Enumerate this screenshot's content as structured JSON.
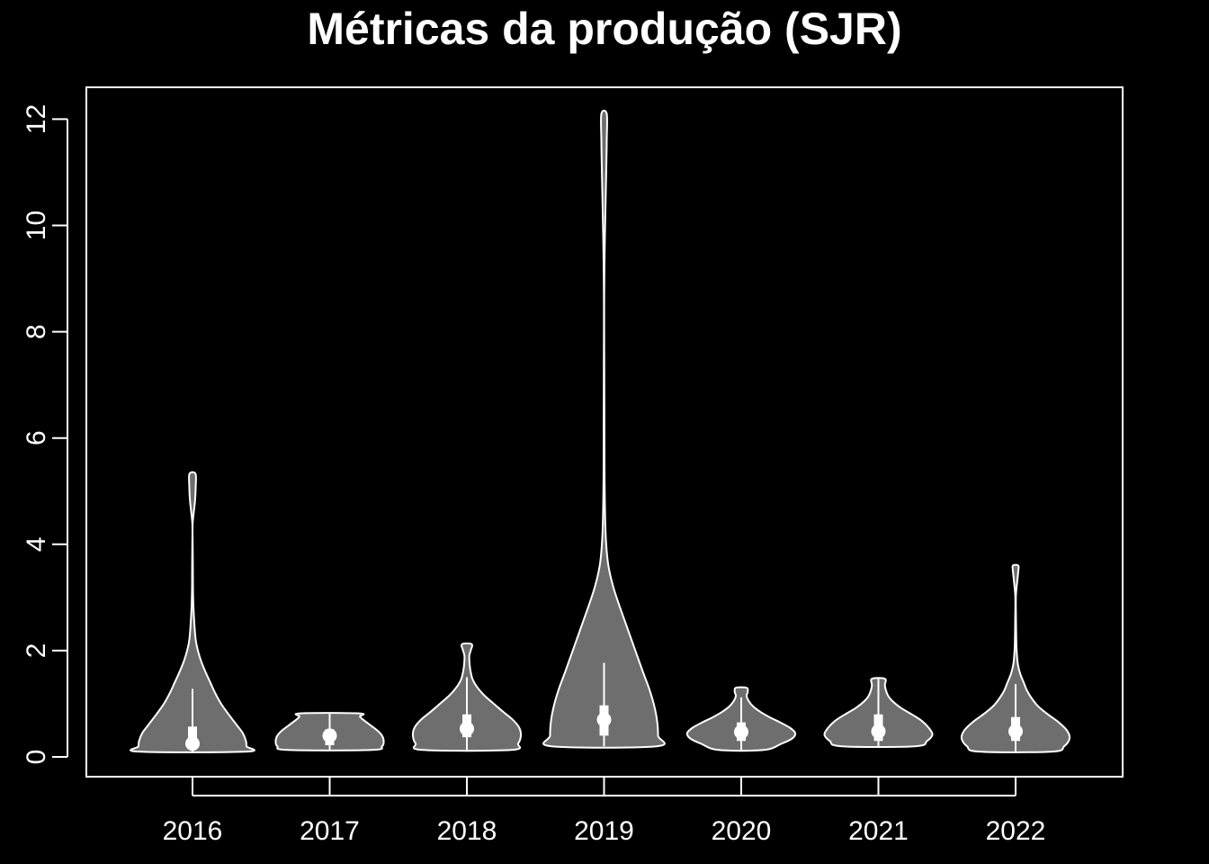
{
  "chart_data": {
    "type": "violin",
    "title": "Métricas da produção (SJR)",
    "xlabel": "",
    "ylabel": "",
    "categories": [
      "2016",
      "2017",
      "2018",
      "2019",
      "2020",
      "2021",
      "2022"
    ],
    "ylim": [
      -0.35,
      12.6
    ],
    "yticks": [
      0,
      2,
      4,
      6,
      8,
      10,
      12
    ],
    "grid": false,
    "colors": {
      "background": "#000000",
      "fill": "#6e6e6e",
      "stroke": "#ffffff"
    },
    "series": [
      {
        "category": "2016",
        "min": 0.1,
        "max": 5.33,
        "median": 0.25,
        "q1": 0.15,
        "q3": 0.57,
        "whisker_low": 0.1,
        "whisker_high": 1.28,
        "density": [
          [
            0.1,
            1.0
          ],
          [
            0.2,
            1.0
          ],
          [
            0.3,
            0.99
          ],
          [
            0.45,
            0.93
          ],
          [
            0.6,
            0.82
          ],
          [
            0.8,
            0.67
          ],
          [
            1.0,
            0.53
          ],
          [
            1.2,
            0.42
          ],
          [
            1.4,
            0.33
          ],
          [
            1.6,
            0.24
          ],
          [
            1.8,
            0.16
          ],
          [
            2.0,
            0.1
          ],
          [
            2.2,
            0.06
          ],
          [
            2.5,
            0.035
          ],
          [
            2.8,
            0.018
          ],
          [
            3.2,
            0.008
          ],
          [
            3.6,
            0.006
          ],
          [
            4.0,
            0.004
          ],
          [
            4.4,
            0.004
          ],
          [
            4.8,
            0.045
          ],
          [
            5.1,
            0.06
          ],
          [
            5.33,
            0.055
          ]
        ]
      },
      {
        "category": "2017",
        "min": 0.13,
        "max": 0.82,
        "median": 0.4,
        "q1": 0.22,
        "q3": 0.52,
        "whisker_low": 0.13,
        "whisker_high": 0.82,
        "density": [
          [
            0.13,
            0.78
          ],
          [
            0.2,
            0.97
          ],
          [
            0.3,
            1.0
          ],
          [
            0.4,
            0.97
          ],
          [
            0.5,
            0.88
          ],
          [
            0.6,
            0.75
          ],
          [
            0.7,
            0.62
          ],
          [
            0.76,
            0.56
          ],
          [
            0.82,
            0.55
          ]
        ]
      },
      {
        "category": "2018",
        "min": 0.13,
        "max": 2.12,
        "median": 0.53,
        "q1": 0.37,
        "q3": 0.8,
        "whisker_low": 0.13,
        "whisker_high": 1.5,
        "density": [
          [
            0.13,
            0.82
          ],
          [
            0.25,
            0.95
          ],
          [
            0.4,
            1.0
          ],
          [
            0.55,
            0.97
          ],
          [
            0.7,
            0.85
          ],
          [
            0.85,
            0.67
          ],
          [
            1.0,
            0.5
          ],
          [
            1.15,
            0.33
          ],
          [
            1.3,
            0.2
          ],
          [
            1.45,
            0.11
          ],
          [
            1.6,
            0.07
          ],
          [
            1.75,
            0.05
          ],
          [
            1.9,
            0.045
          ],
          [
            2.0,
            0.07
          ],
          [
            2.12,
            0.09
          ]
        ]
      },
      {
        "category": "2019",
        "min": 0.2,
        "max": 12.1,
        "median": 0.7,
        "q1": 0.4,
        "q3": 0.97,
        "whisker_low": 0.2,
        "whisker_high": 1.77,
        "density": [
          [
            0.2,
            0.97
          ],
          [
            0.4,
            1.0
          ],
          [
            0.7,
            0.98
          ],
          [
            1.0,
            0.92
          ],
          [
            1.3,
            0.83
          ],
          [
            1.6,
            0.72
          ],
          [
            2.0,
            0.58
          ],
          [
            2.4,
            0.44
          ],
          [
            2.8,
            0.3
          ],
          [
            3.2,
            0.17
          ],
          [
            3.6,
            0.08
          ],
          [
            4.0,
            0.04
          ],
          [
            4.5,
            0.02
          ],
          [
            5.5,
            0.008
          ],
          [
            7.0,
            0.005
          ],
          [
            9.0,
            0.005
          ],
          [
            11.0,
            0.04
          ],
          [
            11.6,
            0.05
          ],
          [
            12.1,
            0.05
          ]
        ]
      },
      {
        "category": "2020",
        "min": 0.13,
        "max": 1.3,
        "median": 0.47,
        "q1": 0.3,
        "q3": 0.65,
        "whisker_low": 0.13,
        "whisker_high": 1.12,
        "density": [
          [
            0.13,
            0.42
          ],
          [
            0.25,
            0.75
          ],
          [
            0.35,
            0.95
          ],
          [
            0.45,
            1.0
          ],
          [
            0.55,
            0.9
          ],
          [
            0.65,
            0.72
          ],
          [
            0.75,
            0.52
          ],
          [
            0.85,
            0.35
          ],
          [
            0.95,
            0.22
          ],
          [
            1.05,
            0.14
          ],
          [
            1.15,
            0.1
          ],
          [
            1.22,
            0.12
          ],
          [
            1.3,
            0.1
          ]
        ]
      },
      {
        "category": "2021",
        "min": 0.2,
        "max": 1.47,
        "median": 0.48,
        "q1": 0.3,
        "q3": 0.8,
        "whisker_low": 0.2,
        "whisker_high": 1.47,
        "density": [
          [
            0.2,
            0.68
          ],
          [
            0.3,
            0.9
          ],
          [
            0.42,
            1.0
          ],
          [
            0.55,
            0.93
          ],
          [
            0.68,
            0.8
          ],
          [
            0.8,
            0.62
          ],
          [
            0.92,
            0.42
          ],
          [
            1.05,
            0.26
          ],
          [
            1.15,
            0.18
          ],
          [
            1.25,
            0.14
          ],
          [
            1.35,
            0.12
          ],
          [
            1.47,
            0.12
          ]
        ]
      },
      {
        "category": "2022",
        "min": 0.1,
        "max": 3.6,
        "median": 0.48,
        "q1": 0.3,
        "q3": 0.75,
        "whisker_low": 0.1,
        "whisker_high": 1.37,
        "density": [
          [
            0.1,
            0.68
          ],
          [
            0.2,
            0.9
          ],
          [
            0.35,
            1.0
          ],
          [
            0.5,
            0.95
          ],
          [
            0.65,
            0.8
          ],
          [
            0.8,
            0.6
          ],
          [
            0.95,
            0.42
          ],
          [
            1.1,
            0.3
          ],
          [
            1.25,
            0.21
          ],
          [
            1.4,
            0.15
          ],
          [
            1.55,
            0.09
          ],
          [
            1.7,
            0.05
          ],
          [
            1.85,
            0.03
          ],
          [
            2.1,
            0.015
          ],
          [
            2.5,
            0.008
          ],
          [
            3.0,
            0.005
          ],
          [
            3.3,
            0.03
          ],
          [
            3.5,
            0.05
          ],
          [
            3.6,
            0.05
          ]
        ]
      }
    ]
  }
}
